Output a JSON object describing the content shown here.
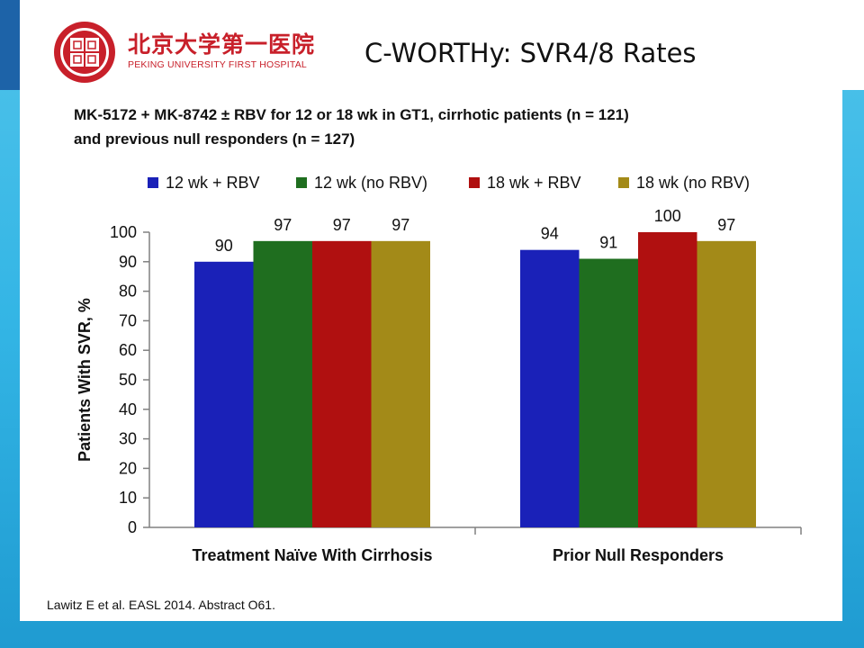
{
  "header": {
    "hospital_name_cn": "北京大学第一医院",
    "hospital_name_en": "PEKING UNIVERSITY FIRST HOSPITAL",
    "title": "C-WORTHy: SVR4/8 Rates"
  },
  "subtitle": {
    "line1": "MK-5172 + MK-8742 ± RBV for 12 or 18 wk in GT1, cirrhotic patients (n = 121)",
    "line2": "and previous null responders (n = 127)"
  },
  "footer": {
    "citation": "Lawitz E et al. EASL 2014. Abstract O61."
  },
  "colors": {
    "brand_red": "#c8202a",
    "frame_blue": "#33b5e5",
    "bar_blue": "#1a21b8",
    "bar_green": "#1f6e1f",
    "bar_red": "#b01010",
    "bar_olive": "#a38a18"
  },
  "chart_data": {
    "type": "bar",
    "title": "",
    "xlabel": "",
    "ylabel": "Patients With SVR, %",
    "ylim": [
      0,
      100
    ],
    "yticks": [
      0,
      10,
      20,
      30,
      40,
      50,
      60,
      70,
      80,
      90,
      100
    ],
    "categories": [
      "Treatment Naïve With Cirrhosis",
      "Prior Null Responders"
    ],
    "legend_position": "top",
    "grid": false,
    "series": [
      {
        "name": "12 wk + RBV",
        "color": "#1a21b8",
        "values": [
          90,
          94
        ]
      },
      {
        "name": "12 wk (no RBV)",
        "color": "#1f6e1f",
        "values": [
          97,
          91
        ]
      },
      {
        "name": "18 wk + RBV",
        "color": "#b01010",
        "values": [
          97,
          100
        ]
      },
      {
        "name": "18 wk (no RBV)",
        "color": "#a38a18",
        "values": [
          97,
          97
        ]
      }
    ]
  }
}
